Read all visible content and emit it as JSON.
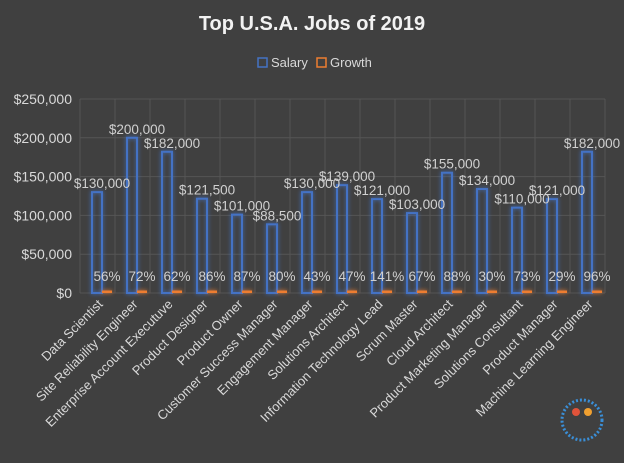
{
  "chart_data": {
    "type": "bar",
    "title": "Top U.S.A. Jobs of 2019",
    "legend_position": "top",
    "grid": true,
    "ylim": [
      0,
      250000
    ],
    "yticks": [
      "$0",
      "$50,000",
      "$100,000",
      "$150,000",
      "$200,000",
      "$250,000"
    ],
    "categories": [
      "Data Scientist",
      "Site Reliability Engineer",
      "Enterprise Account Executuve",
      "Product Designer",
      "Product Owner",
      "Customer Success Manager",
      "Engagement Manager",
      "Solutions Architect",
      "Information Technology Lead",
      "Scrum Master",
      "Cloud Architect",
      "Product Marketing Manager",
      "Solutions Consultant",
      "Product Manager",
      "Machine Learning Engineer"
    ],
    "series": [
      {
        "name": "Salary",
        "color": "#4472c4",
        "values": [
          130000,
          200000,
          182000,
          121500,
          101000,
          88500,
          130000,
          139000,
          121000,
          103000,
          155000,
          134000,
          110000,
          121000,
          182000
        ],
        "labels": [
          "$130,000",
          "$200,000",
          "$182,000",
          "$121,500",
          "$101,000",
          "$88,500",
          "$130,000",
          "$139,000",
          "$121,000",
          "$103,000",
          "$155,000",
          "$134,000",
          "$110,000",
          "$121,000",
          "$182,000"
        ]
      },
      {
        "name": "Growth",
        "color": "#ed7d31",
        "values": [
          0.56,
          0.72,
          0.62,
          0.86,
          0.87,
          0.8,
          0.43,
          0.47,
          1.41,
          0.67,
          0.88,
          0.3,
          0.73,
          0.29,
          0.96
        ],
        "labels": [
          "56%",
          "72%",
          "62%",
          "86%",
          "87%",
          "80%",
          "43%",
          "47%",
          "141%",
          "67%",
          "88%",
          "30%",
          "73%",
          "29%",
          "96%"
        ]
      }
    ]
  }
}
